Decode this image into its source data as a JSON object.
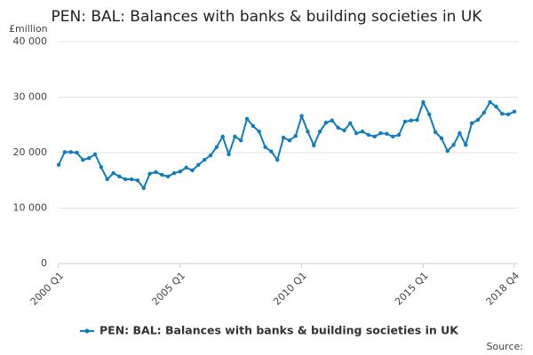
{
  "chart_data": {
    "type": "line",
    "title": "PEN: BAL: Balances with banks & building societies in UK",
    "y_label": "£million",
    "source": "Source:",
    "categories": [
      "2000 Q1",
      null,
      null,
      null,
      null,
      null,
      null,
      null,
      null,
      null,
      null,
      null,
      null,
      null,
      null,
      null,
      null,
      null,
      null,
      null,
      "2005 Q1",
      null,
      null,
      null,
      null,
      null,
      null,
      null,
      null,
      null,
      null,
      null,
      null,
      null,
      null,
      null,
      null,
      null,
      null,
      null,
      "2010 Q1",
      null,
      null,
      null,
      null,
      null,
      null,
      null,
      null,
      null,
      null,
      null,
      null,
      null,
      null,
      null,
      null,
      null,
      null,
      null,
      "2015 Q1",
      null,
      null,
      null,
      null,
      null,
      null,
      null,
      null,
      null,
      null,
      null,
      null,
      null,
      null,
      "2018 Q4"
    ],
    "series": [
      {
        "name": "PEN: BAL: Balances with banks & building societies in UK",
        "color": "#0e7dbf",
        "values": [
          17800,
          20100,
          20100,
          20000,
          18700,
          19000,
          19700,
          17400,
          15200,
          16300,
          15700,
          15200,
          15200,
          15000,
          13600,
          16200,
          16500,
          16000,
          15700,
          16300,
          16600,
          17300,
          16800,
          17800,
          18700,
          19500,
          21000,
          22900,
          19700,
          22900,
          22200,
          26100,
          24800,
          23800,
          21000,
          20200,
          18700,
          22700,
          22200,
          23000,
          26600,
          23800,
          21300,
          23800,
          25400,
          25800,
          24500,
          24000,
          25300,
          23500,
          23800,
          23200,
          22900,
          23500,
          23400,
          22900,
          23200,
          25600,
          25800,
          25900,
          29100,
          26900,
          23700,
          22600,
          20300,
          21400,
          23500,
          21400,
          25300,
          25900,
          27200,
          29100,
          28300,
          27000,
          26900,
          27400
        ]
      }
    ],
    "ylim": [
      0,
      40000
    ],
    "yticks": [
      0,
      {
        "value": 10000,
        "label": "10 000"
      },
      {
        "value": 20000,
        "label": "20 000"
      },
      {
        "value": 30000,
        "label": "30 000"
      },
      {
        "value": 40000,
        "label": "40 000"
      }
    ],
    "grid": true
  }
}
